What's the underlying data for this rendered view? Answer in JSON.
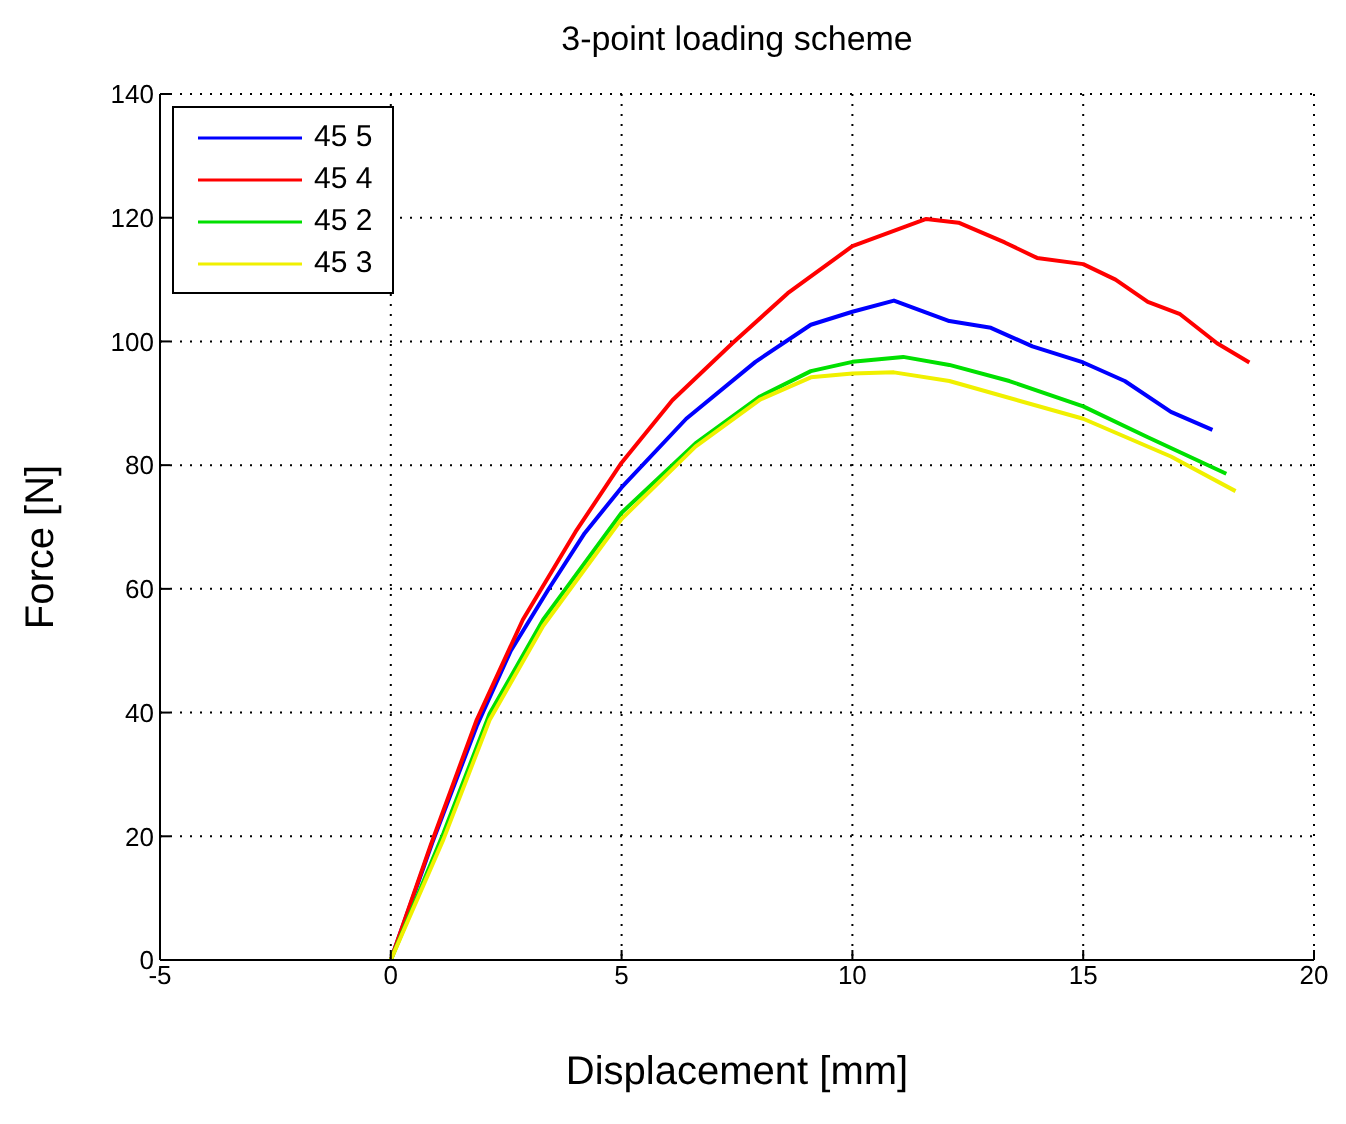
{
  "chart_data": {
    "type": "line",
    "title": "3-point loading scheme",
    "xlabel": "Displacement [mm]",
    "ylabel": "Force [N]",
    "xlim": [
      -5,
      20
    ],
    "xticks": [
      -5,
      0,
      5,
      10,
      15,
      20
    ],
    "ylim": [
      0,
      140
    ],
    "yticks": [
      0,
      20,
      40,
      60,
      80,
      100,
      120,
      140
    ],
    "grid": true,
    "legend": "top left",
    "marker": "none",
    "line_style": "solid",
    "series": [
      {
        "name": "45 5",
        "color": "#0000ff",
        "x": [
          0,
          0.9,
          1.86,
          2.6,
          3.43,
          4.2,
          5,
          6.4,
          7.9,
          9.1,
          10,
          10.9,
          12.1,
          13,
          13.9,
          15,
          15.9,
          16.9,
          17.8
        ],
        "values": [
          0,
          19,
          37.8,
          50,
          60.1,
          69,
          76.4,
          87.5,
          96.7,
          102.7,
          104.8,
          106.6,
          103.3,
          102.2,
          99.2,
          96.6,
          93.6,
          88.6,
          85.7
        ]
      },
      {
        "name": "45 4",
        "color": "#ff0000",
        "x": [
          0,
          0.86,
          1.86,
          2.86,
          4,
          5,
          6.1,
          7.4,
          8.6,
          10,
          11.6,
          12.3,
          13.3,
          14,
          15,
          15.7,
          16.4,
          17.1,
          17.9,
          18.6
        ],
        "values": [
          0,
          18.5,
          38.8,
          55,
          69.2,
          80.4,
          90.5,
          99.7,
          107.8,
          115.4,
          119.8,
          119.2,
          116,
          113.5,
          112.5,
          110,
          106.4,
          104.4,
          99.7,
          96.6
        ]
      },
      {
        "name": "45 2",
        "color": "#00e000",
        "x": [
          0,
          1.14,
          2.14,
          3.3,
          5,
          6.6,
          8,
          9.1,
          10,
          11.1,
          12.1,
          13.4,
          15,
          16.4,
          18.1
        ],
        "values": [
          0,
          20.5,
          39.8,
          55,
          72.3,
          83.5,
          91.1,
          95.2,
          96.7,
          97.5,
          96.2,
          93.6,
          89.5,
          84.5,
          78.6
        ]
      },
      {
        "name": "45 3",
        "color": "#f0f000",
        "x": [
          0,
          1.14,
          2.14,
          3.3,
          5,
          6.6,
          8,
          9.1,
          10,
          10.9,
          12.1,
          15,
          16.9,
          18.3
        ],
        "values": [
          0,
          19.5,
          38.8,
          54,
          71.3,
          83,
          90.6,
          94.2,
          94.8,
          95,
          93.6,
          87.5,
          81.4,
          75.8
        ]
      }
    ]
  }
}
